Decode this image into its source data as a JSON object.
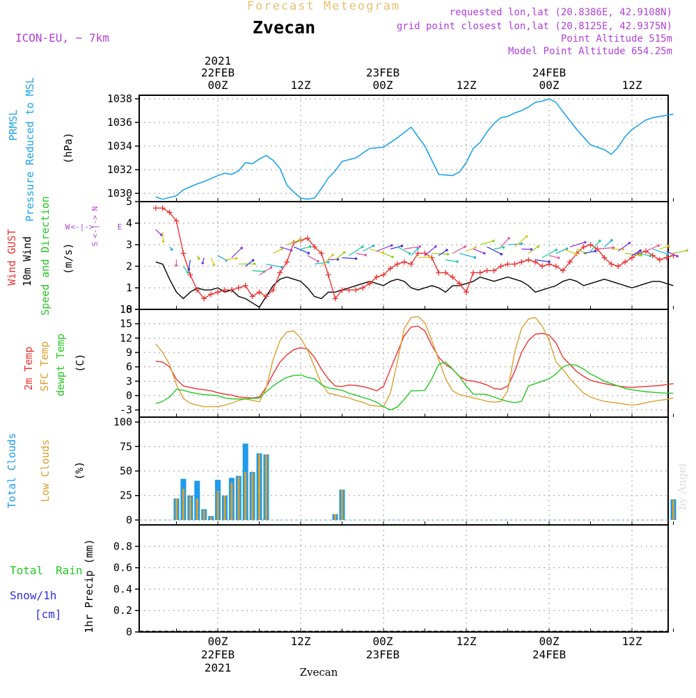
{
  "header": {
    "forecast_title": "Forecast Meteogram",
    "station": "Zvecan",
    "model": "ICON-EU, ~ 7km",
    "requested": "requested lon,lat (20.8386E, 42.9108N)",
    "gridpoint": "grid point closest lon,lat (20.8125E, 42.9375N)",
    "point_alt": "Point Altitude 515m",
    "model_alt": "Model Point Altitude 654.25m",
    "footer": "Zvecan",
    "credit": "by Angel"
  },
  "time_axis": {
    "top_labels": [
      "00Z",
      "12Z",
      "00Z",
      "12Z",
      "00Z",
      "12Z"
    ],
    "bottom_labels": [
      "00Z",
      "12Z",
      "00Z",
      "12Z",
      "00Z",
      "12Z"
    ],
    "dates": [
      "22FEB",
      "23FEB",
      "24FEB"
    ],
    "year": "2021"
  },
  "compass": {
    "n": "N",
    "s": "S",
    "w": "W",
    "e": "E",
    "arrow": "<-|->"
  },
  "panels": {
    "pressure": {
      "label1": "PRMSL",
      "label2": "Pressure Reduced to MSL",
      "unit": "(hPa)"
    },
    "wind": {
      "gust": "Wind GUST",
      "wind10": "10m Wind",
      "dir": "Speed and Direction",
      "unit": "(m/s)"
    },
    "temp": {
      "t2m": "2m Temp",
      "sfc": "SFC Temp",
      "dew": "dewpt Temp",
      "unit": "(C)"
    },
    "clouds": {
      "total": "Total Clouds",
      "low": "Low Clouds",
      "unit": "(%)"
    },
    "precip": {
      "total": "Total",
      "rain": "Rain",
      "snow": "Snow/1h",
      "snow_unit": "[cm]",
      "label": "1hr Precip (mm)"
    }
  },
  "colors": {
    "pressure": "#1ca3ea",
    "gust": "#ec3232",
    "wind": "#000000",
    "t2m": "#ec3232",
    "sfc": "#d9a030",
    "dew": "#22c822",
    "cloud_total": "#1e9beb",
    "cloud_low": "#d9a030",
    "purple": "#b040d8",
    "green": "#22c822",
    "blue": "#3030e0"
  },
  "chart_data": [
    {
      "type": "line",
      "title": "PRMSL Pressure Reduced to MSL",
      "ylabel": "(hPa)",
      "ylim": [
        1029.3,
        1038.3
      ],
      "yticks": [
        1030,
        1032,
        1034,
        1036,
        1038
      ],
      "x_hours": [
        -9,
        -8,
        -6,
        -5,
        -3,
        -2,
        0,
        1,
        2,
        3,
        4,
        5,
        6,
        7,
        8,
        9,
        10,
        11,
        12,
        13,
        14,
        15,
        16,
        17,
        18,
        20,
        22,
        24,
        26,
        28,
        30,
        32,
        34,
        35,
        36,
        37,
        38,
        39,
        40,
        41,
        42,
        43,
        44,
        45,
        46,
        47,
        48,
        49,
        50,
        52,
        54,
        55,
        56,
        57,
        58,
        59,
        60,
        61,
        62,
        63,
        64,
        65,
        66
      ],
      "values": [
        1029.7,
        1029.5,
        1029.8,
        1030.3,
        1030.8,
        1031.0,
        1031.5,
        1031.7,
        1031.6,
        1031.9,
        1032.6,
        1032.5,
        1032.9,
        1033.2,
        1032.8,
        1032.1,
        1030.7,
        1030.1,
        1029.6,
        1029.5,
        1029.6,
        1030.4,
        1031.3,
        1031.9,
        1032.7,
        1033.0,
        1033.8,
        1033.9,
        1034.7,
        1035.6,
        1034.0,
        1031.6,
        1031.5,
        1031.8,
        1032.6,
        1033.8,
        1034.3,
        1035.2,
        1035.9,
        1036.4,
        1036.5,
        1036.8,
        1037.0,
        1037.3,
        1037.7,
        1037.8,
        1038.0,
        1037.7,
        1036.9,
        1035.4,
        1034.1,
        1033.9,
        1033.7,
        1033.3,
        1033.9,
        1034.8,
        1035.4,
        1035.8,
        1036.2,
        1036.4,
        1036.5,
        1036.6,
        1036.7
      ]
    },
    {
      "type": "line",
      "title": "Wind GUST / 10m Wind Speed and Direction",
      "ylabel": "(m/s)",
      "ylim": [
        0,
        5
      ],
      "yticks": [
        0,
        1,
        2,
        3,
        4,
        5
      ],
      "series": [
        {
          "name": "Wind GUST",
          "x_hours": [
            -9,
            -8,
            -7,
            -6,
            -5,
            -4,
            -3,
            -2,
            -1,
            0,
            1,
            2,
            3,
            4,
            5,
            6,
            7,
            8,
            9,
            10,
            11,
            12,
            13,
            14,
            15,
            16,
            17,
            18,
            19,
            20,
            21,
            22,
            23,
            24,
            25,
            26,
            27,
            28,
            29,
            30,
            31,
            32,
            33,
            34,
            35,
            36,
            37,
            38,
            39,
            40,
            41,
            42,
            43,
            44,
            45,
            46,
            47,
            48,
            49,
            50,
            51,
            52,
            53,
            54,
            55,
            56,
            57,
            58,
            59,
            60,
            61,
            62,
            63,
            64,
            65,
            66
          ],
          "values": [
            4.7,
            4.7,
            4.5,
            4.1,
            2.6,
            1.6,
            0.9,
            0.5,
            0.7,
            0.8,
            0.9,
            0.9,
            1.0,
            1.1,
            0.6,
            0.8,
            0.6,
            0.9,
            1.7,
            2.2,
            3.1,
            3.2,
            3.3,
            2.9,
            2.6,
            1.6,
            0.5,
            0.9,
            0.9,
            0.9,
            1.0,
            1.2,
            1.5,
            1.6,
            1.9,
            2.1,
            2.2,
            2.1,
            2.6,
            2.6,
            2.4,
            1.7,
            1.7,
            1.5,
            1.2,
            0.8,
            1.7,
            1.7,
            1.8,
            1.8,
            2.0,
            2.1,
            2.1,
            2.2,
            2.3,
            2.2,
            2.0,
            2.1,
            2.0,
            1.8,
            2.2,
            2.6,
            2.9,
            3.0,
            2.8,
            2.4,
            2.1,
            2.0,
            2.2,
            2.4,
            2.6,
            2.7,
            2.5,
            2.3,
            2.4,
            2.5
          ]
        },
        {
          "name": "10m Wind",
          "x_hours": [
            -9,
            -8,
            -7,
            -6,
            -5,
            -4,
            -3,
            -2,
            -1,
            0,
            1,
            2,
            3,
            4,
            5,
            6,
            7,
            8,
            9,
            10,
            11,
            12,
            13,
            14,
            15,
            16,
            17,
            18,
            19,
            20,
            21,
            22,
            23,
            24,
            25,
            26,
            27,
            28,
            29,
            30,
            31,
            32,
            33,
            34,
            35,
            36,
            37,
            38,
            39,
            40,
            41,
            42,
            43,
            44,
            45,
            46,
            47,
            48,
            49,
            50,
            51,
            52,
            53,
            54,
            55,
            56,
            57,
            58,
            59,
            60,
            61,
            62,
            63,
            64,
            65,
            66
          ],
          "values": [
            2.2,
            2.1,
            1.4,
            0.8,
            0.5,
            0.8,
            1.0,
            0.9,
            0.9,
            1.0,
            0.8,
            0.9,
            0.6,
            0.5,
            0.3,
            0.1,
            0.6,
            1.1,
            1.4,
            1.5,
            1.4,
            1.3,
            1.0,
            0.6,
            0.5,
            0.8,
            0.8,
            0.9,
            1.0,
            1.1,
            1.2,
            1.3,
            1.2,
            1.1,
            1.3,
            1.4,
            1.3,
            1.0,
            0.9,
            1.0,
            1.1,
            1.0,
            0.8,
            1.1,
            1.1,
            1.2,
            1.3,
            1.5,
            1.4,
            1.3,
            1.4,
            1.5,
            1.4,
            1.3,
            1.1,
            0.8,
            0.9,
            1.0,
            1.1,
            1.3,
            1.4,
            1.3,
            1.1,
            1.2,
            1.3,
            1.4,
            1.3,
            1.2,
            1.1,
            1.0,
            1.1,
            1.2,
            1.3,
            1.3,
            1.2,
            1.1
          ]
        }
      ]
    },
    {
      "type": "line",
      "title": "2m Temp / SFC Temp / dewpt Temp",
      "ylabel": "(C)",
      "ylim": [
        -4.5,
        18
      ],
      "yticks": [
        -3,
        0,
        3,
        6,
        9,
        12,
        15,
        18
      ],
      "series": [
        {
          "name": "2m Temp",
          "x_hours": [
            -9,
            -8,
            -7,
            -6,
            -5,
            -4,
            -3,
            -2,
            -1,
            0,
            1,
            2,
            3,
            4,
            5,
            6,
            7,
            8,
            9,
            10,
            11,
            12,
            13,
            14,
            15,
            16,
            17,
            18,
            19,
            20,
            21,
            22,
            23,
            24,
            25,
            26,
            27,
            28,
            29,
            30,
            31,
            32,
            33,
            34,
            35,
            36,
            37,
            38,
            39,
            40,
            41,
            42,
            43,
            44,
            45,
            46,
            47,
            48,
            49,
            50,
            51,
            52,
            53,
            54,
            55,
            56,
            57,
            58,
            59,
            60,
            61,
            62,
            63,
            64,
            65,
            66
          ],
          "values": [
            7.2,
            7.0,
            6.0,
            3.4,
            2.0,
            1.7,
            1.4,
            1.2,
            1.0,
            0.6,
            0.3,
            0.1,
            -0.3,
            -0.4,
            -0.5,
            -0.3,
            1.7,
            4.5,
            7.0,
            8.5,
            9.6,
            10.0,
            9.7,
            8.0,
            5.5,
            3.5,
            2.0,
            1.9,
            2.2,
            2.1,
            1.9,
            1.5,
            1.0,
            1.9,
            5.5,
            9.0,
            12.5,
            14.3,
            14.5,
            13.5,
            10.5,
            8.0,
            6.5,
            5.5,
            4.0,
            3.2,
            3.0,
            2.7,
            2.2,
            1.5,
            1.3,
            2.0,
            5.0,
            9.0,
            11.5,
            12.8,
            13.0,
            12.6,
            11.0,
            8.0,
            6.5,
            5.0,
            4.0,
            3.2,
            2.8,
            2.5,
            2.2,
            2.0,
            1.8,
            1.7,
            1.8,
            1.9,
            2.0,
            2.1,
            2.3,
            2.5
          ]
        },
        {
          "name": "SFC Temp",
          "x_hours": [
            -9,
            -8,
            -7,
            -6,
            -5,
            -4,
            -3,
            -2,
            -1,
            0,
            1,
            2,
            3,
            4,
            5,
            6,
            7,
            8,
            9,
            10,
            11,
            12,
            13,
            14,
            15,
            16,
            17,
            18,
            19,
            20,
            21,
            22,
            23,
            24,
            25,
            26,
            27,
            28,
            29,
            30,
            31,
            32,
            33,
            34,
            35,
            36,
            37,
            38,
            39,
            40,
            41,
            42,
            43,
            44,
            45,
            46,
            47,
            48,
            49,
            50,
            51,
            52,
            53,
            54,
            55,
            56,
            57,
            58,
            59,
            60,
            61,
            62,
            63,
            64,
            65,
            66
          ],
          "values": [
            10.8,
            9.0,
            6.5,
            2.3,
            -0.6,
            -1.6,
            -2.0,
            -2.3,
            -2.3,
            -2.3,
            -2.0,
            -1.6,
            -1.0,
            -0.7,
            -1.0,
            -1.3,
            1.5,
            7.5,
            11.5,
            13.3,
            13.5,
            12.0,
            9.5,
            6.0,
            2.5,
            0.5,
            0.2,
            -0.2,
            -0.5,
            -1.0,
            -1.4,
            -2.0,
            -2.2,
            -2.3,
            0.5,
            7.0,
            14.0,
            16.3,
            16.5,
            15.2,
            11.5,
            7.5,
            3.5,
            1.0,
            0.2,
            -0.1,
            -0.5,
            -0.8,
            -1.2,
            -1.4,
            -1.2,
            1.0,
            9.0,
            14.0,
            16.0,
            16.3,
            14.5,
            11.5,
            7.0,
            5.5,
            3.5,
            2.0,
            0.5,
            -0.3,
            -0.8,
            -1.2,
            -1.4,
            -1.6,
            -1.8,
            -2.0,
            -1.8,
            -1.5,
            -1.2,
            -1.0,
            -0.8,
            -0.5
          ]
        },
        {
          "name": "dewpt Temp",
          "x_hours": [
            -9,
            -8,
            -7,
            -6,
            -5,
            -4,
            -3,
            -2,
            -1,
            0,
            1,
            2,
            3,
            4,
            5,
            6,
            7,
            8,
            9,
            10,
            11,
            12,
            13,
            14,
            15,
            16,
            17,
            18,
            19,
            20,
            21,
            22,
            23,
            24,
            25,
            26,
            27,
            28,
            29,
            30,
            31,
            32,
            33,
            34,
            35,
            36,
            37,
            38,
            39,
            40,
            41,
            42,
            43,
            44,
            45,
            46,
            47,
            48,
            49,
            50,
            51,
            52,
            53,
            54,
            55,
            56,
            57,
            58,
            59,
            60,
            61,
            62,
            63,
            64,
            65,
            66
          ],
          "values": [
            -1.7,
            -1.2,
            -0.3,
            1.3,
            1.1,
            0.7,
            0.4,
            0.2,
            0.1,
            0.0,
            -0.5,
            -0.7,
            -0.7,
            -0.7,
            -0.6,
            -0.5,
            0.8,
            2.0,
            3.0,
            3.8,
            4.2,
            4.3,
            3.8,
            3.5,
            2.3,
            1.6,
            1.4,
            1.1,
            0.5,
            0.1,
            -0.4,
            -0.8,
            -1.4,
            -2.3,
            -3.0,
            -2.4,
            -0.8,
            1.0,
            1.0,
            1.1,
            3.5,
            6.5,
            7.0,
            5.5,
            4.0,
            2.0,
            0.3,
            0.3,
            0.2,
            -0.3,
            -0.8,
            -1.2,
            -1.5,
            -1.2,
            2.0,
            2.5,
            3.0,
            3.5,
            4.5,
            6.0,
            6.5,
            6.3,
            5.5,
            4.5,
            3.8,
            3.0,
            2.5,
            2.0,
            1.5,
            1.2,
            1.0,
            0.8,
            0.7,
            0.6,
            0.5,
            0.5
          ]
        }
      ]
    },
    {
      "type": "bar",
      "title": "Total Clouds / Low Clouds",
      "ylabel": "(%)",
      "ylim": [
        -5,
        105
      ],
      "yticks": [
        0,
        25,
        50,
        75,
        100
      ],
      "x_hours": [
        -6,
        -5,
        -4,
        -3,
        -2,
        -1,
        0,
        1,
        2,
        3,
        4,
        5,
        6,
        7,
        17,
        18,
        66
      ],
      "series": [
        {
          "name": "Total Clouds",
          "values": [
            22,
            42,
            25,
            40,
            11,
            4,
            41,
            25,
            43,
            45,
            78,
            49,
            68,
            67,
            6,
            31,
            21
          ]
        },
        {
          "name": "Low Clouds",
          "values": [
            22,
            32,
            24,
            22,
            10,
            3,
            30,
            25,
            38,
            44,
            49,
            48,
            67,
            67,
            6,
            31,
            20
          ]
        }
      ]
    },
    {
      "type": "bar",
      "title": "1hr Precip (mm) Total Rain Snow/1h [cm]",
      "ylabel": "1hr Precip (mm)",
      "ylim": [
        0,
        1
      ],
      "yticks": [
        0,
        0.2,
        0.4,
        0.6,
        0.8
      ],
      "x_hours": [],
      "values": []
    }
  ]
}
